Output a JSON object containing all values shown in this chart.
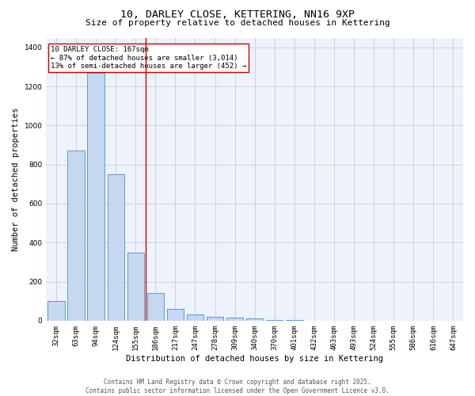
{
  "title_line1": "10, DARLEY CLOSE, KETTERING, NN16 9XP",
  "title_line2": "Size of property relative to detached houses in Kettering",
  "xlabel": "Distribution of detached houses by size in Kettering",
  "ylabel": "Number of detached properties",
  "categories": [
    "32sqm",
    "63sqm",
    "94sqm",
    "124sqm",
    "155sqm",
    "186sqm",
    "217sqm",
    "247sqm",
    "278sqm",
    "309sqm",
    "340sqm",
    "370sqm",
    "401sqm",
    "432sqm",
    "463sqm",
    "493sqm",
    "524sqm",
    "555sqm",
    "586sqm",
    "616sqm",
    "647sqm"
  ],
  "values": [
    100,
    870,
    1270,
    750,
    350,
    140,
    60,
    30,
    20,
    15,
    10,
    5,
    2,
    0,
    0,
    0,
    0,
    0,
    0,
    0,
    0
  ],
  "bar_color": "#c5d8f0",
  "bar_edge_color": "#5b9bd5",
  "vline_x": 4.5,
  "vline_color": "#cc0000",
  "annotation_text": "10 DARLEY CLOSE: 167sqm\n← 87% of detached houses are smaller (3,014)\n13% of semi-detached houses are larger (452) →",
  "annotation_box_color": "white",
  "annotation_edge_color": "#cc0000",
  "ylim": [
    0,
    1450
  ],
  "yticks": [
    0,
    200,
    400,
    600,
    800,
    1000,
    1200,
    1400
  ],
  "grid_color": "#c8d0e8",
  "bg_color": "#eef2fa",
  "footer_line1": "Contains HM Land Registry data © Crown copyright and database right 2025.",
  "footer_line2": "Contains public sector information licensed under the Open Government Licence v3.0.",
  "title_fontsize": 9.5,
  "subtitle_fontsize": 8,
  "tick_fontsize": 6.5,
  "label_fontsize": 7.5,
  "annotation_fontsize": 6.5,
  "footer_fontsize": 5.5
}
